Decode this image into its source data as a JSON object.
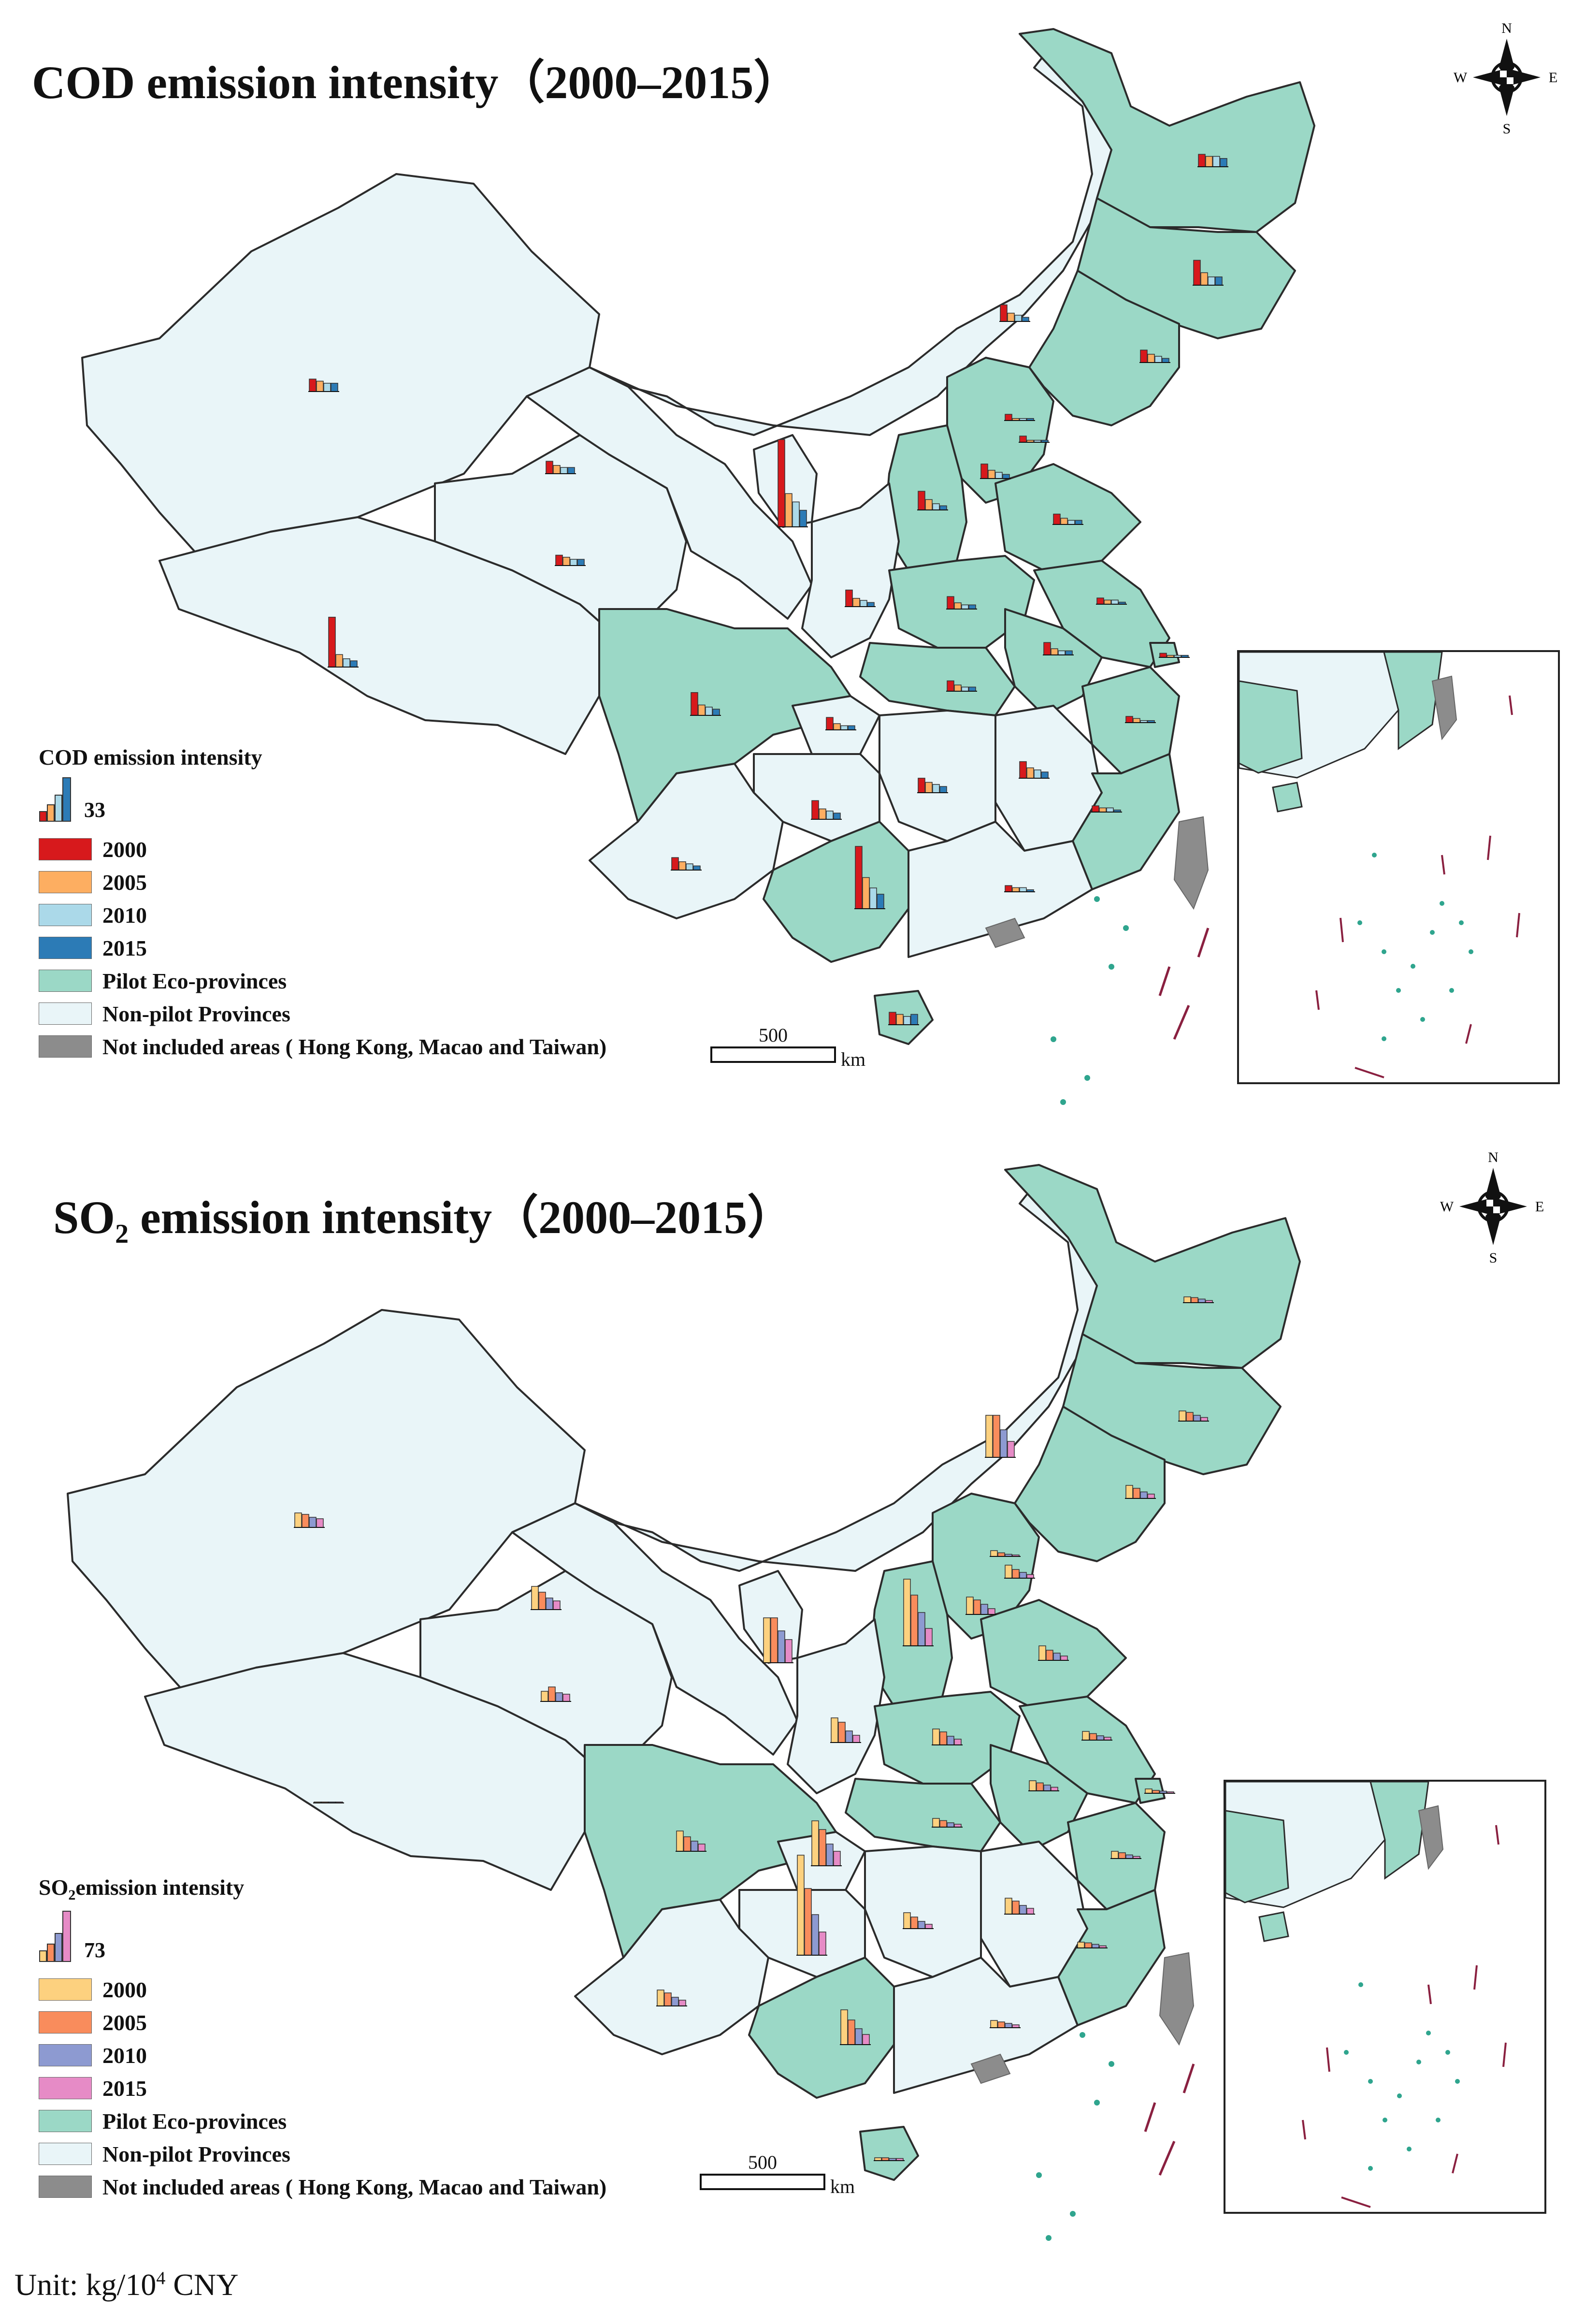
{
  "colors": {
    "pilot": "#9bd8c6",
    "non_pilot": "#e9f5f8",
    "not_included": "#8c8c8c",
    "border": "#2b2b2b",
    "islands": "#2fa58e",
    "dashes": "#8a2040",
    "cod_2000": "#d7191c",
    "cod_2005": "#fdae61",
    "cod_2010": "#abd9e9",
    "cod_2015": "#2c7bb6",
    "so2_2000": "#fdd17f",
    "so2_2005": "#f98c5c",
    "so2_2010": "#8d9ad1",
    "so2_2015": "#e68bc6"
  },
  "panels": [
    {
      "id": "cod",
      "title": "COD  emission intensity（2000–2015）",
      "legend_title": "COD emission intensity",
      "scale_value": "33",
      "years": [
        "2000",
        "2005",
        "2010",
        "2015"
      ],
      "pilot_label": "Pilot Eco-provinces",
      "nonpilot_label": "Non-pilot Provinces",
      "notincluded_label": "Not included areas ( Hong Kong, Macao and Taiwan)",
      "scalebar_value": "500",
      "scalebar_unit": "km",
      "compass": {
        "n": "N",
        "s": "S",
        "e": "E",
        "w": "W"
      }
    },
    {
      "id": "so2",
      "title_main": "SO",
      "title_sub": "2",
      "title_rest": " emission intensity（2000–2015）",
      "legend_title_main": "SO",
      "legend_title_sub": "2",
      "legend_title_rest": "emission intensity",
      "scale_value": "73",
      "years": [
        "2000",
        "2005",
        "2010",
        "2015"
      ],
      "pilot_label": "Pilot Eco-provinces",
      "nonpilot_label": "Non-pilot Provinces",
      "notincluded_label": "Not included areas ( Hong Kong, Macao and Taiwan)",
      "scalebar_value": "500",
      "scalebar_unit": "km",
      "compass": {
        "n": "N",
        "s": "S",
        "e": "E",
        "w": "W"
      }
    }
  ],
  "unit": {
    "prefix": "Unit: kg/10",
    "sup": "4",
    "suffix": " CNY"
  },
  "chart_data": [
    {
      "type": "bar",
      "title": "COD  emission intensity（2000–2015）",
      "reference_value": 33,
      "series_names": [
        "2000",
        "2005",
        "2010",
        "2015"
      ],
      "values": {
        "Xinjiang": [
          6,
          5,
          4,
          4
        ],
        "Tibet": [
          24,
          6,
          4,
          3
        ],
        "Qinghai": [
          5,
          4,
          3,
          3
        ],
        "Gansu": [
          6,
          4,
          3,
          3
        ],
        "Ningxia": [
          42,
          16,
          12,
          8
        ],
        "Inner Mongolia": [
          8,
          4,
          3,
          2
        ],
        "Heilongjiang": [
          6,
          5,
          5,
          4
        ],
        "Jilin": [
          12,
          6,
          4,
          4
        ],
        "Liaoning": [
          6,
          4,
          3,
          2
        ],
        "Beijing": [
          3,
          1,
          1,
          1
        ],
        "Tianjin": [
          3,
          1,
          1,
          1
        ],
        "Hebei": [
          7,
          4,
          3,
          2
        ],
        "Shanxi": [
          9,
          5,
          3,
          2
        ],
        "Shandong": [
          5,
          3,
          2,
          2
        ],
        "Shaanxi": [
          8,
          4,
          3,
          2
        ],
        "Henan": [
          6,
          3,
          2,
          2
        ],
        "Jiangsu": [
          3,
          2,
          2,
          1
        ],
        "Shanghai": [
          2,
          1,
          1,
          1
        ],
        "Anhui": [
          6,
          3,
          2,
          2
        ],
        "Hubei": [
          5,
          3,
          2,
          2
        ],
        "Sichuan": [
          11,
          5,
          4,
          3
        ],
        "Chongqing": [
          6,
          3,
          2,
          2
        ],
        "Zhejiang": [
          3,
          2,
          1,
          1
        ],
        "Guizhou": [
          9,
          5,
          4,
          3
        ],
        "Hunan": [
          7,
          5,
          4,
          3
        ],
        "Jiangxi": [
          8,
          5,
          4,
          3
        ],
        "Fujian": [
          3,
          2,
          2,
          1
        ],
        "Yunnan": [
          6,
          4,
          3,
          2
        ],
        "Guangxi": [
          30,
          15,
          10,
          7
        ],
        "Guangdong": [
          3,
          2,
          2,
          1
        ],
        "Hainan": [
          6,
          5,
          4,
          5
        ]
      }
    },
    {
      "type": "bar",
      "title": "SO2 emission intensity（2000–2015）",
      "reference_value": 73,
      "series_names": [
        "2000",
        "2005",
        "2010",
        "2015"
      ],
      "values": {
        "Xinjiang": [
          20,
          18,
          14,
          12
        ],
        "Tibet": [
          1,
          1,
          1,
          1
        ],
        "Qinghai": [
          14,
          20,
          12,
          10
        ],
        "Gansu": [
          32,
          24,
          16,
          12
        ],
        "Ningxia": [
          62,
          62,
          44,
          32
        ],
        "Inner Mongolia": [
          58,
          58,
          38,
          22
        ],
        "Heilongjiang": [
          8,
          7,
          5,
          3
        ],
        "Jilin": [
          14,
          12,
          8,
          5
        ],
        "Liaoning": [
          18,
          14,
          9,
          6
        ],
        "Beijing": [
          8,
          5,
          3,
          2
        ],
        "Tianjin": [
          18,
          12,
          8,
          5
        ],
        "Hebei": [
          24,
          20,
          14,
          8
        ],
        "Shanxi": [
          92,
          70,
          46,
          24
        ],
        "Shandong": [
          20,
          14,
          10,
          6
        ],
        "Shaanxi": [
          34,
          28,
          16,
          10
        ],
        "Henan": [
          22,
          18,
          12,
          8
        ],
        "Jiangsu": [
          12,
          9,
          6,
          4
        ],
        "Shanghai": [
          6,
          4,
          3,
          2
        ],
        "Anhui": [
          14,
          11,
          8,
          5
        ],
        "Hubei": [
          12,
          9,
          6,
          4
        ],
        "Sichuan": [
          28,
          20,
          14,
          10
        ],
        "Chongqing": [
          62,
          50,
          30,
          20
        ],
        "Guizhou": [
          138,
          92,
          56,
          32
        ],
        "Zhejiang": [
          10,
          8,
          5,
          3
        ],
        "Hunan": [
          22,
          16,
          10,
          6
        ],
        "Jiangxi": [
          22,
          18,
          12,
          8
        ],
        "Fujian": [
          8,
          7,
          5,
          3
        ],
        "Yunnan": [
          22,
          18,
          12,
          8
        ],
        "Guangxi": [
          48,
          34,
          22,
          14
        ],
        "Guangdong": [
          10,
          8,
          6,
          4
        ],
        "Hainan": [
          4,
          4,
          3,
          3
        ]
      }
    }
  ]
}
